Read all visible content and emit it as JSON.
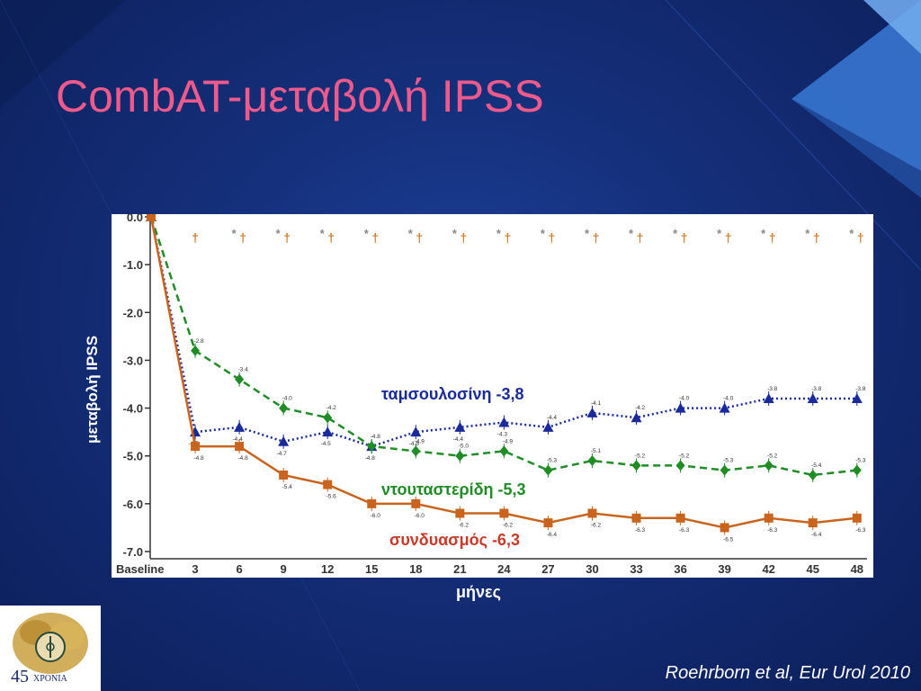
{
  "slide": {
    "title": "CombAT-μεταβολή IPSS",
    "citation": "Roehrborn et al, Eur Urol 2010",
    "logo_number": "45",
    "logo_word": "ΧΡΟΝΙΑ"
  },
  "series_labels": {
    "tamsulosin": "ταμσουλοσίνη -3,8",
    "dutasteride": "ντουταστερίδη -5,3",
    "combination": "συνδυασμός -6,3"
  },
  "colors": {
    "title": "#ee5a8c",
    "tamsulosin": "#1a2a9a",
    "dutasteride": "#1f8c25",
    "combination": "#c8641e",
    "combination_label": "#c83b2a"
  },
  "chart_data": {
    "type": "line",
    "xlabel": "μήνες",
    "ylabel": "μεταβολή IPSS",
    "categories": [
      "Baseline",
      "3",
      "6",
      "9",
      "12",
      "15",
      "18",
      "21",
      "24",
      "27",
      "30",
      "33",
      "36",
      "39",
      "42",
      "45",
      "48"
    ],
    "yticks": [
      "0.0",
      "-1.0",
      "-2.0",
      "-3.0",
      "-4.0",
      "-5.0",
      "-6.0",
      "-7.0"
    ],
    "ylim": [
      -7.0,
      0.0
    ],
    "grid": false,
    "legend": "inline labels",
    "significance_markers": {
      "dagger_at": [
        "3",
        "6",
        "9",
        "12",
        "15",
        "18",
        "21",
        "24",
        "27",
        "30",
        "33",
        "36",
        "39",
        "42",
        "45",
        "48"
      ],
      "asterisk_at": [
        "6",
        "9",
        "12",
        "15",
        "18",
        "21",
        "24",
        "27",
        "30",
        "33",
        "36",
        "39",
        "42",
        "45",
        "48"
      ]
    },
    "series": [
      {
        "key": "tamsulosin",
        "marker": "triangle",
        "style": "dotted",
        "values": [
          0.0,
          -4.5,
          -4.4,
          -4.7,
          -4.5,
          -4.8,
          -4.5,
          -4.4,
          -4.3,
          -4.4,
          -4.1,
          -4.2,
          -4.0,
          -4.0,
          -3.8,
          -3.8,
          -3.8
        ],
        "labels": [
          "",
          "-4.5",
          "-4.4",
          "-4.7",
          "-4.5",
          "-4.8",
          "-4.5",
          "-4.4",
          "-4.3",
          "-4.4",
          "-4.1",
          "-4.2",
          "-4.0",
          "-4.0",
          "-3.8",
          "-3.8",
          "-3.8"
        ]
      },
      {
        "key": "dutasteride",
        "marker": "diamond",
        "style": "dashed",
        "values": [
          0.0,
          -2.8,
          -3.4,
          -4.0,
          -4.2,
          -4.8,
          -4.9,
          -5.0,
          -4.9,
          -5.3,
          -5.1,
          -5.2,
          -5.2,
          -5.3,
          -5.2,
          -5.4,
          -5.3
        ],
        "labels": [
          "",
          "-2.8",
          "-3.4",
          "-4.0",
          "-4.2",
          "-4.8",
          "-4.9",
          "-5.0",
          "-4.9",
          "-5.3",
          "-5.1",
          "-5.2",
          "-5.2",
          "-5.3",
          "-5.2",
          "-5.4",
          "-5.3"
        ]
      },
      {
        "key": "combination",
        "marker": "square",
        "style": "solid",
        "values": [
          0.0,
          -4.8,
          -4.8,
          -5.4,
          -5.6,
          -6.0,
          -6.0,
          -6.2,
          -6.2,
          -6.4,
          -6.2,
          -6.3,
          -6.3,
          -6.5,
          -6.3,
          -6.4,
          -6.3
        ],
        "labels": [
          "",
          "-4.8",
          "-4.8",
          "-5.4",
          "-5.6",
          "-6.0",
          "-6.0",
          "-6.2",
          "-6.2",
          "-6.4",
          "-6.2",
          "-6.3",
          "-6.3",
          "-6.5",
          "-6.3",
          "-6.4",
          "-6.3"
        ]
      }
    ]
  }
}
